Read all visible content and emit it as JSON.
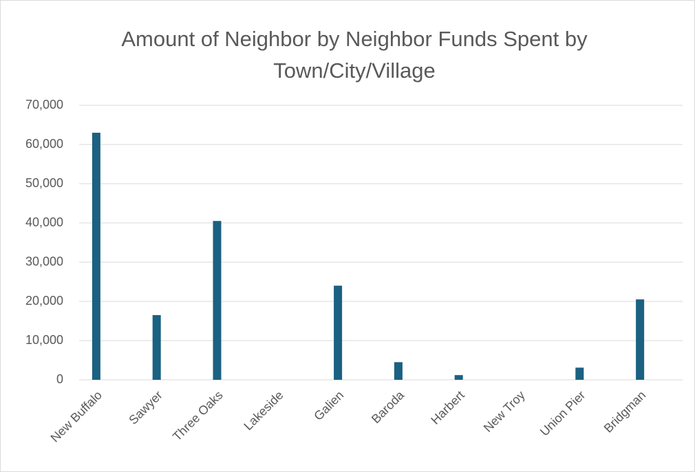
{
  "chart_data": {
    "type": "bar",
    "title": "Amount of Neighbor by Neighbor Funds Spent by Town/City/Village",
    "categories": [
      "New Buffalo",
      "Sawyer",
      "Three Oaks",
      "Lakeside",
      "Galien",
      "Baroda",
      "Harbert",
      "New Troy",
      "Union Pier",
      "Bridgman"
    ],
    "values": [
      63000,
      16500,
      40500,
      0,
      24000,
      4500,
      1200,
      0,
      3100,
      20500
    ],
    "color": "#1b6182",
    "ylim": [
      0,
      70000
    ],
    "yticks": [
      0,
      {
        "value": 10000,
        "label": "10,000"
      },
      {
        "value": 20000,
        "label": "20,000"
      },
      {
        "value": 30000,
        "label": "30,000"
      },
      {
        "value": 40000,
        "label": "40,000"
      },
      {
        "value": 50000,
        "label": "50,000"
      },
      {
        "value": 60000,
        "label": "60,000"
      },
      {
        "value": 70000,
        "label": "70,000"
      }
    ],
    "grid": true
  }
}
